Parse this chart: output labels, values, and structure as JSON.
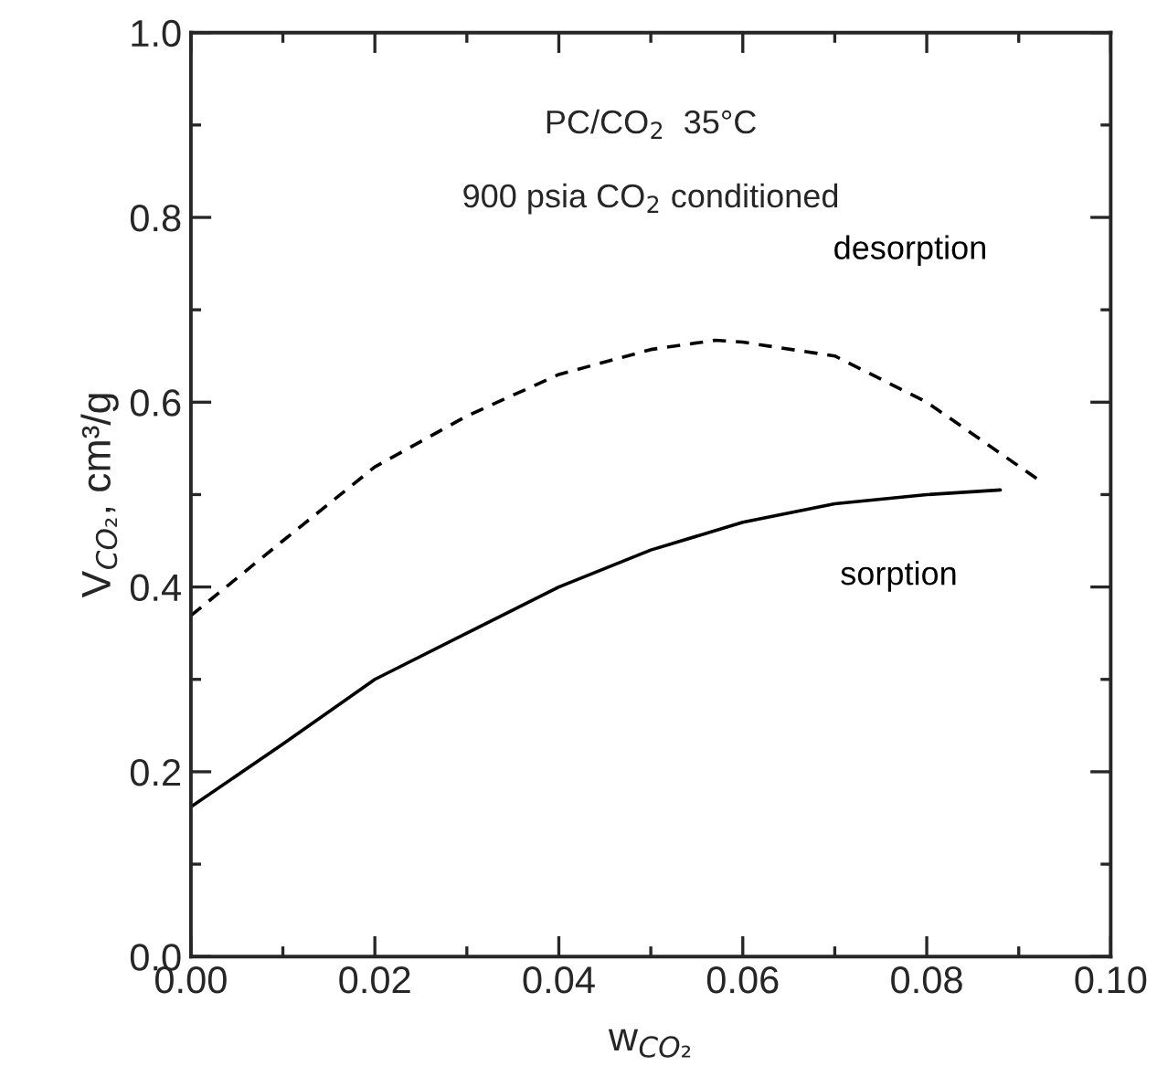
{
  "chart_data": {
    "type": "line",
    "xlabel": "w$_{CO₂}$",
    "ylabel": "V$_{CO₂}$, cm³/g",
    "annotations": [
      "PC/CO$_{2}$  35°C",
      "900 psia CO$_{2}$ conditioned"
    ],
    "series": [
      {
        "name": "desorption",
        "color": "#000000",
        "line_style": "dashed",
        "x": [
          0,
          0.01,
          0.02,
          0.03,
          0.04,
          0.05,
          0.057,
          0.06,
          0.07,
          0.08,
          0.092
        ],
        "values": [
          0.369,
          0.45,
          0.53,
          0.585,
          0.63,
          0.657,
          0.667,
          0.665,
          0.65,
          0.6,
          0.517
        ]
      },
      {
        "name": "sorption",
        "color": "#000000",
        "line_style": "solid",
        "x": [
          0,
          0.01,
          0.02,
          0.03,
          0.04,
          0.05,
          0.06,
          0.07,
          0.08,
          0.088
        ],
        "values": [
          0.162,
          0.23,
          0.3,
          0.35,
          0.4,
          0.44,
          0.47,
          0.49,
          0.5,
          0.505
        ]
      }
    ],
    "xlim": [
      0,
      0.1
    ],
    "xticks": [
      {
        "value": 0,
        "label": "0.00"
      },
      {
        "value": 0.02,
        "label": "0.02"
      },
      {
        "value": 0.04,
        "label": "0.04"
      },
      {
        "value": 0.06,
        "label": "0.06"
      },
      {
        "value": 0.08,
        "label": "0.08"
      },
      {
        "value": 0.1,
        "label": "0.10"
      }
    ],
    "ylim": [
      0,
      1
    ],
    "yticks": [
      {
        "value": 0,
        "label": "0.0"
      },
      {
        "value": 0.2,
        "label": "0.2"
      },
      {
        "value": 0.4,
        "label": "0.4"
      },
      {
        "value": 0.6,
        "label": "0.6"
      },
      {
        "value": 0.8,
        "label": "0.8"
      },
      {
        "value": 1,
        "label": "1.0"
      }
    ],
    "grid": false,
    "legend": false,
    "marker": "none"
  }
}
